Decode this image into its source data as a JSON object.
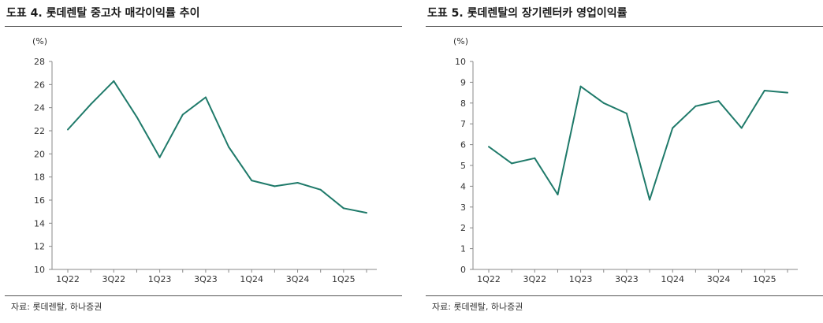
{
  "charts": [
    {
      "title": "도표 4. 롯데렌탈 중고차 매각이익률 추이",
      "source": "자료: 롯데렌탈, 하나증권",
      "line_color": "#1f7a6a"
    },
    {
      "title": "도표 5. 롯데렌탈의 장기렌터카 영업이익률",
      "source": "자료: 롯데렌탈, 하나증권",
      "line_color": "#1f7a6a"
    }
  ],
  "chart_data": [
    {
      "type": "line",
      "title": "도표 4. 롯데렌탈 중고차 매각이익률 추이",
      "unit_label": "(%)",
      "x": [
        "1Q22",
        "2Q22",
        "3Q22",
        "4Q22",
        "1Q23",
        "2Q23",
        "3Q23",
        "4Q23",
        "1Q24",
        "2Q24",
        "3Q24",
        "4Q24",
        "1Q25",
        "2Q25"
      ],
      "x_tick_labels": [
        "1Q22",
        "3Q22",
        "1Q23",
        "3Q23",
        "1Q24",
        "3Q24",
        "1Q25"
      ],
      "values": [
        22.1,
        24.3,
        26.3,
        23.2,
        19.7,
        23.4,
        24.9,
        20.6,
        17.7,
        17.2,
        17.5,
        16.9,
        15.3,
        14.9
      ],
      "ylim": [
        10,
        28
      ],
      "yticks": [
        10,
        12,
        14,
        16,
        18,
        20,
        22,
        24,
        26,
        28
      ],
      "grid": false
    },
    {
      "type": "line",
      "title": "도표 5. 롯데렌탈의 장기렌터카 영업이익률",
      "unit_label": "(%)",
      "x": [
        "1Q22",
        "2Q22",
        "3Q22",
        "4Q22",
        "1Q23",
        "2Q23",
        "3Q23",
        "4Q23",
        "1Q24",
        "2Q24",
        "3Q24",
        "4Q24",
        "1Q25",
        "2Q25"
      ],
      "x_tick_labels": [
        "1Q22",
        "3Q22",
        "1Q23",
        "3Q23",
        "1Q24",
        "3Q24",
        "1Q25"
      ],
      "values": [
        5.9,
        5.1,
        5.35,
        3.6,
        8.8,
        8.0,
        7.5,
        3.35,
        6.8,
        7.85,
        8.1,
        6.8,
        8.6,
        8.5
      ],
      "ylim": [
        0,
        10
      ],
      "yticks": [
        0,
        1,
        2,
        3,
        4,
        5,
        6,
        7,
        8,
        9,
        10
      ],
      "grid": false
    }
  ]
}
